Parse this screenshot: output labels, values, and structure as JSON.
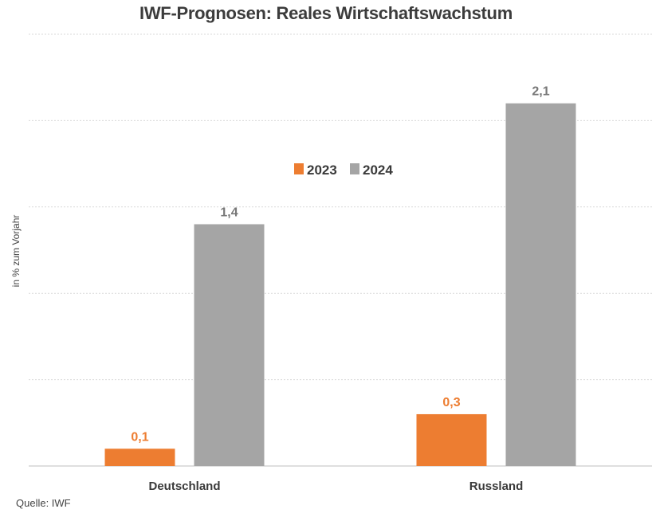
{
  "chart_data": {
    "type": "bar",
    "title": "IWF-Prognosen: Reales Wirtschaftswachstum",
    "ylabel": "in % zum Vorjahr",
    "xlabel": "",
    "categories": [
      "Deutschland",
      "Russland"
    ],
    "series": [
      {
        "name": "2023",
        "values": [
          0.1,
          0.3
        ],
        "labels": [
          "0,1",
          "0,3"
        ],
        "color": "#ed7d31"
      },
      {
        "name": "2024",
        "values": [
          1.4,
          2.1
        ],
        "labels": [
          "1,4",
          "2,1"
        ],
        "color": "#a5a5a5"
      }
    ],
    "ylim": [
      0,
      2.5
    ],
    "grid": true,
    "legend": "center"
  },
  "source": "Quelle: IWF"
}
